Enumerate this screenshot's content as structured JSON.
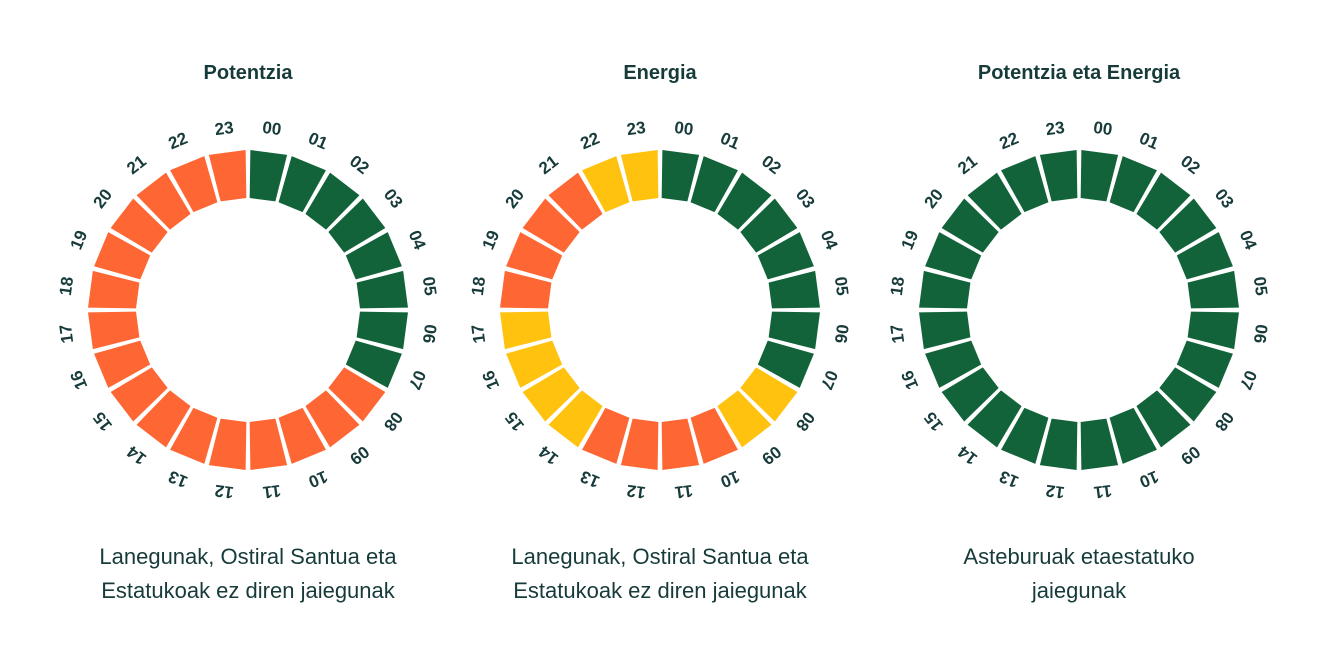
{
  "colors": {
    "green": "#12633a",
    "orange": "#fe6633",
    "yellow": "#ffc20e",
    "text": "#173b3a"
  },
  "hour_labels": [
    "00",
    "01",
    "02",
    "03",
    "04",
    "05",
    "06",
    "07",
    "08",
    "09",
    "10",
    "11",
    "12",
    "13",
    "14",
    "15",
    "16",
    "17",
    "18",
    "19",
    "20",
    "21",
    "22",
    "23"
  ],
  "panels": [
    {
      "title": "Potentzia",
      "caption_lines": [
        "Lanegunak, Ostiral Santua eta",
        "Estatukoak ez diren jaiegunak"
      ],
      "hour_periods": [
        "green",
        "green",
        "green",
        "green",
        "green",
        "green",
        "green",
        "green",
        "orange",
        "orange",
        "orange",
        "orange",
        "orange",
        "orange",
        "orange",
        "orange",
        "orange",
        "orange",
        "orange",
        "orange",
        "orange",
        "orange",
        "orange",
        "orange"
      ]
    },
    {
      "title": "Energia",
      "caption_lines": [
        "Lanegunak, Ostiral Santua eta",
        "Estatukoak ez diren jaiegunak"
      ],
      "hour_periods": [
        "green",
        "green",
        "green",
        "green",
        "green",
        "green",
        "green",
        "green",
        "yellow",
        "yellow",
        "orange",
        "orange",
        "orange",
        "orange",
        "yellow",
        "yellow",
        "yellow",
        "yellow",
        "orange",
        "orange",
        "orange",
        "orange",
        "yellow",
        "yellow"
      ]
    },
    {
      "title": "Potentzia eta Energia",
      "caption_lines": [
        "Asteburuak etaestatuko",
        "jaiegunak"
      ],
      "hour_periods": [
        "green",
        "green",
        "green",
        "green",
        "green",
        "green",
        "green",
        "green",
        "green",
        "green",
        "green",
        "green",
        "green",
        "green",
        "green",
        "green",
        "green",
        "green",
        "green",
        "green",
        "green",
        "green",
        "green",
        "green"
      ]
    }
  ]
}
